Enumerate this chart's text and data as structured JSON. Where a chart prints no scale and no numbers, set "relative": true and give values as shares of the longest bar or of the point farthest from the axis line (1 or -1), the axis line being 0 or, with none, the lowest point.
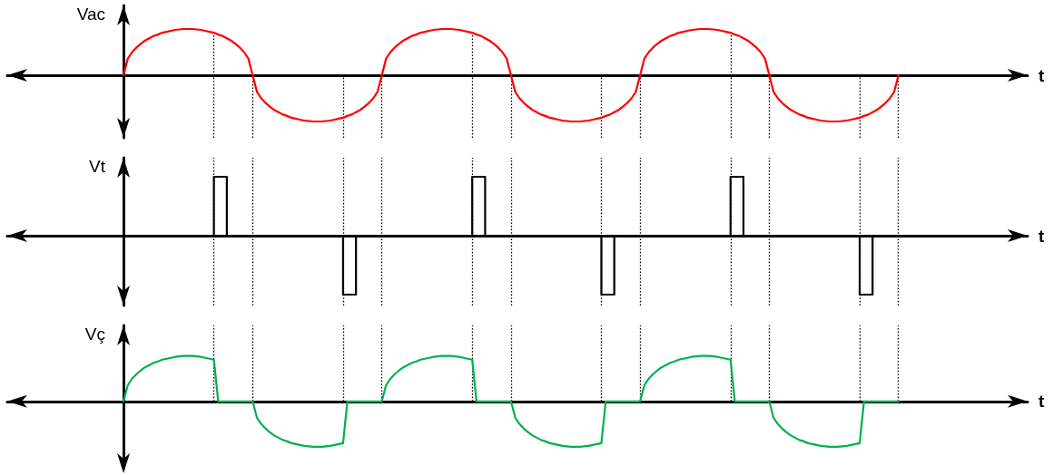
{
  "chart_data": [
    {
      "type": "line",
      "ylabel": "Vac",
      "xlabel": "t",
      "relative": true,
      "marker": "none",
      "color": "#ff0000",
      "categories": [
        null,
        null,
        null,
        null,
        null,
        null,
        null,
        null,
        null,
        null,
        null,
        null,
        null,
        null,
        null,
        null,
        null,
        null,
        null,
        null,
        null,
        null,
        null,
        null,
        null,
        null,
        null,
        null,
        null,
        null,
        null,
        null,
        null,
        null,
        null,
        null,
        null,
        null,
        null,
        null,
        null,
        null,
        null,
        null,
        null,
        null,
        null,
        null,
        null,
        null,
        null,
        null,
        null,
        null,
        null,
        null,
        null,
        null,
        null,
        null,
        null,
        null,
        null,
        null,
        null,
        null,
        null,
        null,
        null,
        null,
        null,
        null,
        null,
        null,
        null,
        null,
        null,
        null,
        null,
        null,
        null,
        null,
        null,
        null,
        null,
        null,
        null,
        null,
        null,
        null,
        null,
        null,
        null,
        null,
        null,
        null,
        null,
        null,
        null,
        null,
        null,
        null,
        null,
        null,
        null,
        null,
        null,
        null,
        null,
        null,
        null,
        null,
        null,
        null,
        null,
        null,
        null,
        null,
        null,
        null,
        null,
        null,
        null,
        null,
        null,
        null,
        null,
        null,
        null,
        null,
        null,
        null,
        null,
        null,
        null,
        null,
        null,
        null,
        null,
        null,
        null,
        null,
        null,
        null,
        null,
        null,
        null,
        null,
        null,
        null,
        null,
        null,
        null,
        null,
        null,
        null,
        null,
        null,
        null,
        null,
        null,
        null,
        null,
        null,
        null,
        null,
        null,
        null,
        null,
        null,
        null,
        null,
        null,
        null,
        null,
        null,
        null,
        null,
        null,
        null,
        null,
        null,
        null,
        null,
        null,
        null,
        null,
        null,
        null,
        null,
        null,
        null,
        null,
        null,
        null,
        null,
        null,
        null,
        null,
        null,
        null,
        null,
        null,
        null,
        null,
        null,
        null,
        null,
        null,
        null,
        null,
        null,
        null,
        null,
        null,
        null,
        null,
        null,
        null,
        null,
        null,
        null,
        null,
        null,
        null,
        null,
        null,
        null,
        null,
        null,
        null,
        null,
        null,
        null,
        null,
        null,
        null,
        null
      ],
      "values": [
        null,
        null,
        null,
        null,
        null,
        null,
        null,
        null,
        null,
        null,
        null,
        null,
        null,
        null,
        null,
        null,
        null,
        null,
        null,
        null,
        null,
        null,
        null,
        null,
        null,
        null,
        null,
        0,
        0.36,
        0.5,
        0.6,
        0.68,
        0.75,
        0.8,
        0.85,
        0.88,
        0.92,
        0.94,
        0.96,
        0.98,
        0.99,
        1,
        1,
        1,
        0.99,
        0.98,
        0.96,
        0.94,
        0.92,
        0.88,
        0.85,
        0.8,
        0.75,
        0.68,
        0.6,
        0.5,
        0.36,
        0,
        -0.36,
        -0.5,
        -0.6,
        -0.68,
        -0.75,
        -0.8,
        -0.85,
        -0.88,
        -0.92,
        -0.94,
        -0.96,
        -0.98,
        -0.99,
        -1,
        -1,
        -1,
        -0.99,
        -0.98,
        -0.96,
        -0.94,
        -0.92,
        -0.88,
        -0.85,
        -0.8,
        -0.75,
        -0.68,
        -0.6,
        -0.5,
        -0.36,
        0,
        0.36,
        0.5,
        0.6,
        0.68,
        0.75,
        0.8,
        0.85,
        0.88,
        0.92,
        0.94,
        0.96,
        0.98,
        0.99,
        1,
        1,
        1,
        0.99,
        0.98,
        0.96,
        0.94,
        0.92,
        0.88,
        0.85,
        0.8,
        0.75,
        0.68,
        0.6,
        0.5,
        0.36,
        0,
        -0.36,
        -0.5,
        -0.6,
        -0.68,
        -0.75,
        -0.8,
        -0.85,
        -0.88,
        -0.92,
        -0.94,
        -0.96,
        -0.98,
        -0.99,
        -1,
        -1,
        -1,
        -0.99,
        -0.98,
        -0.96,
        -0.94,
        -0.92,
        -0.88,
        -0.85,
        -0.8,
        -0.75,
        -0.68,
        -0.6,
        -0.5,
        -0.36,
        0,
        0.36,
        0.5,
        0.6,
        0.68,
        0.75,
        0.8,
        0.85,
        0.88,
        0.92,
        0.94,
        0.96,
        0.98,
        0.99,
        1,
        1,
        1,
        0.99,
        0.98,
        0.96,
        0.94,
        0.92,
        0.88,
        0.85,
        0.8,
        0.75,
        0.68,
        0.6,
        0.5,
        0.36,
        0,
        -0.36,
        -0.5,
        -0.6,
        -0.68,
        -0.75,
        -0.8,
        -0.85,
        -0.88,
        -0.92,
        -0.94,
        -0.96,
        -0.98,
        -0.99,
        -1,
        -1,
        -1,
        -0.99,
        -0.98,
        -0.96,
        -0.94,
        -0.92,
        -0.88,
        -0.85,
        -0.8,
        -0.75,
        -0.68,
        -0.6,
        -0.5,
        -0.36,
        0,
        null,
        null,
        null,
        null,
        null,
        null,
        null,
        null,
        null,
        null,
        null,
        null,
        null,
        null,
        null,
        null,
        null,
        null,
        null,
        null,
        null,
        null,
        null,
        null,
        null,
        null,
        null,
        null,
        null,
        null
      ]
    },
    {
      "type": "step",
      "ylabel": "Vt",
      "xlabel": "t",
      "relative": true,
      "marker": "none",
      "color": "#000000",
      "categories": [
        null,
        null,
        null,
        null,
        null,
        null,
        null,
        null,
        null,
        null,
        null,
        null,
        null,
        null,
        null,
        null,
        null,
        null,
        null,
        null,
        null,
        null,
        null,
        null,
        null,
        null,
        null,
        null,
        null,
        null,
        null,
        null,
        null,
        null,
        null,
        null,
        null,
        null,
        null,
        null,
        null,
        null,
        null,
        null,
        null,
        null,
        null,
        null,
        null,
        null,
        null,
        null,
        null,
        null,
        null,
        null,
        null,
        null,
        null,
        null,
        null,
        null,
        null,
        null,
        null,
        null,
        null,
        null,
        null,
        null,
        null,
        null,
        null,
        null,
        null,
        null,
        null,
        null,
        null,
        null,
        null,
        null,
        null,
        null,
        null,
        null,
        null,
        null,
        null,
        null,
        null,
        null,
        null,
        null,
        null,
        null,
        null,
        null,
        null,
        null,
        null,
        null,
        null,
        null,
        null,
        null,
        null,
        null,
        null,
        null,
        null,
        null,
        null,
        null,
        null,
        null,
        null,
        null,
        null,
        null,
        null,
        null,
        null,
        null,
        null,
        null,
        null,
        null,
        null,
        null,
        null,
        null,
        null,
        null,
        null,
        null,
        null,
        null,
        null,
        null,
        null,
        null,
        null,
        null,
        null,
        null,
        null,
        null,
        null,
        null,
        null,
        null,
        null,
        null,
        null,
        null,
        null,
        null,
        null,
        null,
        null,
        null,
        null,
        null,
        null,
        null,
        null,
        null,
        null,
        null,
        null,
        null,
        null,
        null,
        null,
        null,
        null,
        null,
        null,
        null,
        null,
        null,
        null,
        null,
        null,
        null,
        null,
        null,
        null,
        null,
        null,
        null,
        null,
        null,
        null,
        null,
        null,
        null,
        null,
        null,
        null,
        null,
        null,
        null,
        null,
        null,
        null,
        null,
        null,
        null,
        null,
        null,
        null,
        null,
        null,
        null,
        null,
        null,
        null,
        null,
        null,
        null,
        null,
        null,
        null,
        null,
        null,
        null,
        null,
        null,
        null,
        null,
        null,
        null,
        null,
        null,
        null,
        null
      ],
      "values": [
        null,
        null,
        null,
        null,
        null,
        null,
        null,
        null,
        null,
        null,
        null,
        null,
        null,
        null,
        null,
        null,
        null,
        null,
        null,
        null,
        null,
        null,
        null,
        null,
        null,
        null,
        null,
        0,
        0,
        0,
        0,
        0,
        0,
        0,
        0,
        0,
        0,
        0,
        0,
        0,
        0,
        0,
        0,
        0,
        0,
        0,
        0,
        0,
        1,
        1,
        1,
        0,
        0,
        0,
        0,
        0,
        0,
        0,
        0,
        0,
        0,
        0,
        0,
        0,
        0,
        0,
        0,
        0,
        0,
        0,
        0,
        0,
        0,
        0,
        0,
        0,
        0,
        0,
        -1,
        -1,
        -1,
        0,
        0,
        0,
        0,
        0,
        0,
        0,
        0,
        0,
        0,
        0,
        0,
        0,
        0,
        0,
        0,
        0,
        0,
        0,
        0,
        0,
        0,
        0,
        0,
        0,
        0,
        0,
        1,
        1,
        1,
        0,
        0,
        0,
        0,
        0,
        0,
        0,
        0,
        0,
        0,
        0,
        0,
        0,
        0,
        0,
        0,
        0,
        0,
        0,
        0,
        0,
        0,
        0,
        0,
        0,
        0,
        0,
        -1,
        -1,
        -1,
        0,
        0,
        0,
        0,
        0,
        0,
        0,
        0,
        0,
        0,
        0,
        0,
        0,
        0,
        0,
        0,
        0,
        0,
        0,
        0,
        0,
        0,
        0,
        0,
        0,
        0,
        0,
        1,
        1,
        1,
        0,
        0,
        0,
        0,
        0,
        0,
        0,
        0,
        0,
        0,
        0,
        0,
        0,
        0,
        0,
        0,
        0,
        0,
        0,
        0,
        0,
        0,
        0,
        0,
        0,
        0,
        0,
        -1,
        -1,
        -1,
        0,
        0,
        0,
        0,
        0,
        0,
        0,
        null,
        null,
        null,
        null,
        null,
        null,
        null,
        null,
        null,
        null,
        null,
        null,
        null,
        null,
        null,
        null,
        null,
        null,
        null,
        null,
        null,
        null,
        null,
        null,
        null,
        null,
        null,
        null,
        null,
        null
      ]
    },
    {
      "type": "line",
      "ylabel": "Vç",
      "xlabel": "t",
      "relative": true,
      "marker": "none",
      "color": "#00b050",
      "categories": [
        null,
        null,
        null,
        null,
        null,
        null,
        null,
        null,
        null,
        null,
        null,
        null,
        null,
        null,
        null,
        null,
        null,
        null,
        null,
        null,
        null,
        null,
        null,
        null,
        null,
        null,
        null,
        null,
        null,
        null,
        null,
        null,
        null,
        null,
        null,
        null,
        null,
        null,
        null,
        null,
        null,
        null,
        null,
        null,
        null,
        null,
        null,
        null,
        null,
        null,
        null,
        null,
        null,
        null,
        null,
        null,
        null,
        null,
        null,
        null,
        null,
        null,
        null,
        null,
        null,
        null,
        null,
        null,
        null,
        null,
        null,
        null,
        null,
        null,
        null,
        null,
        null,
        null,
        null,
        null,
        null,
        null,
        null,
        null,
        null,
        null,
        null,
        null,
        null,
        null,
        null,
        null,
        null,
        null,
        null,
        null,
        null,
        null,
        null,
        null,
        null,
        null,
        null,
        null,
        null,
        null,
        null,
        null,
        null,
        null,
        null,
        null,
        null,
        null,
        null,
        null,
        null,
        null,
        null,
        null,
        null,
        null,
        null,
        null,
        null,
        null,
        null,
        null,
        null,
        null,
        null,
        null,
        null,
        null,
        null,
        null,
        null,
        null,
        null,
        null,
        null,
        null,
        null,
        null,
        null,
        null,
        null,
        null,
        null,
        null,
        null,
        null,
        null,
        null,
        null,
        null,
        null,
        null,
        null,
        null,
        null,
        null,
        null,
        null,
        null,
        null,
        null,
        null,
        null,
        null,
        null,
        null,
        null,
        null,
        null,
        null,
        null,
        null,
        null,
        null,
        null,
        null,
        null,
        null,
        null,
        null,
        null,
        null,
        null,
        null,
        null,
        null,
        null,
        null,
        null,
        null,
        null,
        null,
        null,
        null,
        null,
        null,
        null,
        null,
        null,
        null,
        null,
        null,
        null,
        null,
        null,
        null,
        null,
        null,
        null,
        null,
        null,
        null,
        null,
        null,
        null,
        null,
        null,
        null,
        null,
        null,
        null,
        null,
        null,
        null,
        null,
        null,
        null,
        null,
        null,
        null,
        null,
        null
      ],
      "values": [
        null,
        null,
        null,
        null,
        null,
        null,
        null,
        null,
        null,
        null,
        null,
        null,
        null,
        null,
        null,
        null,
        null,
        null,
        null,
        null,
        null,
        null,
        null,
        null,
        null,
        null,
        null,
        0,
        0.36,
        0.5,
        0.6,
        0.68,
        0.75,
        0.8,
        0.85,
        0.88,
        0.92,
        0.94,
        0.96,
        0.98,
        0.99,
        1,
        1,
        1,
        0.99,
        0.98,
        0.96,
        0.94,
        0.92,
        0,
        0,
        0,
        0,
        0,
        0,
        0,
        0,
        0,
        -0.36,
        -0.5,
        -0.6,
        -0.68,
        -0.75,
        -0.8,
        -0.85,
        -0.88,
        -0.92,
        -0.94,
        -0.96,
        -0.98,
        -0.99,
        -1,
        -1,
        -1,
        -0.99,
        -0.98,
        -0.96,
        -0.94,
        -0.92,
        0,
        0,
        0,
        0,
        0,
        0,
        0,
        0,
        0,
        0.36,
        0.5,
        0.6,
        0.68,
        0.75,
        0.8,
        0.85,
        0.88,
        0.92,
        0.94,
        0.96,
        0.98,
        0.99,
        1,
        1,
        1,
        0.99,
        0.98,
        0.96,
        0.94,
        0.92,
        0,
        0,
        0,
        0,
        0,
        0,
        0,
        0,
        0,
        -0.36,
        -0.5,
        -0.6,
        -0.68,
        -0.75,
        -0.8,
        -0.85,
        -0.88,
        -0.92,
        -0.94,
        -0.96,
        -0.98,
        -0.99,
        -1,
        -1,
        -1,
        -0.99,
        -0.98,
        -0.96,
        -0.94,
        -0.92,
        0,
        0,
        0,
        0,
        0,
        0,
        0,
        0,
        0,
        0.36,
        0.5,
        0.6,
        0.68,
        0.75,
        0.8,
        0.85,
        0.88,
        0.92,
        0.94,
        0.96,
        0.98,
        0.99,
        1,
        1,
        1,
        0.99,
        0.98,
        0.96,
        0.94,
        0.92,
        0,
        0,
        0,
        0,
        0,
        0,
        0,
        0,
        0,
        -0.36,
        -0.5,
        -0.6,
        -0.68,
        -0.75,
        -0.8,
        -0.85,
        -0.88,
        -0.92,
        -0.94,
        -0.96,
        -0.98,
        -0.99,
        -1,
        -1,
        -1,
        -0.99,
        -0.98,
        -0.96,
        -0.94,
        -0.92,
        0,
        0,
        0,
        0,
        0,
        0,
        0,
        0,
        0,
        null,
        null,
        null,
        null,
        null,
        null,
        null,
        null,
        null,
        null,
        null,
        null,
        null,
        null,
        null,
        null,
        null,
        null,
        null,
        null,
        null,
        null,
        null,
        null,
        null,
        null,
        null,
        null,
        null,
        null
      ]
    }
  ]
}
